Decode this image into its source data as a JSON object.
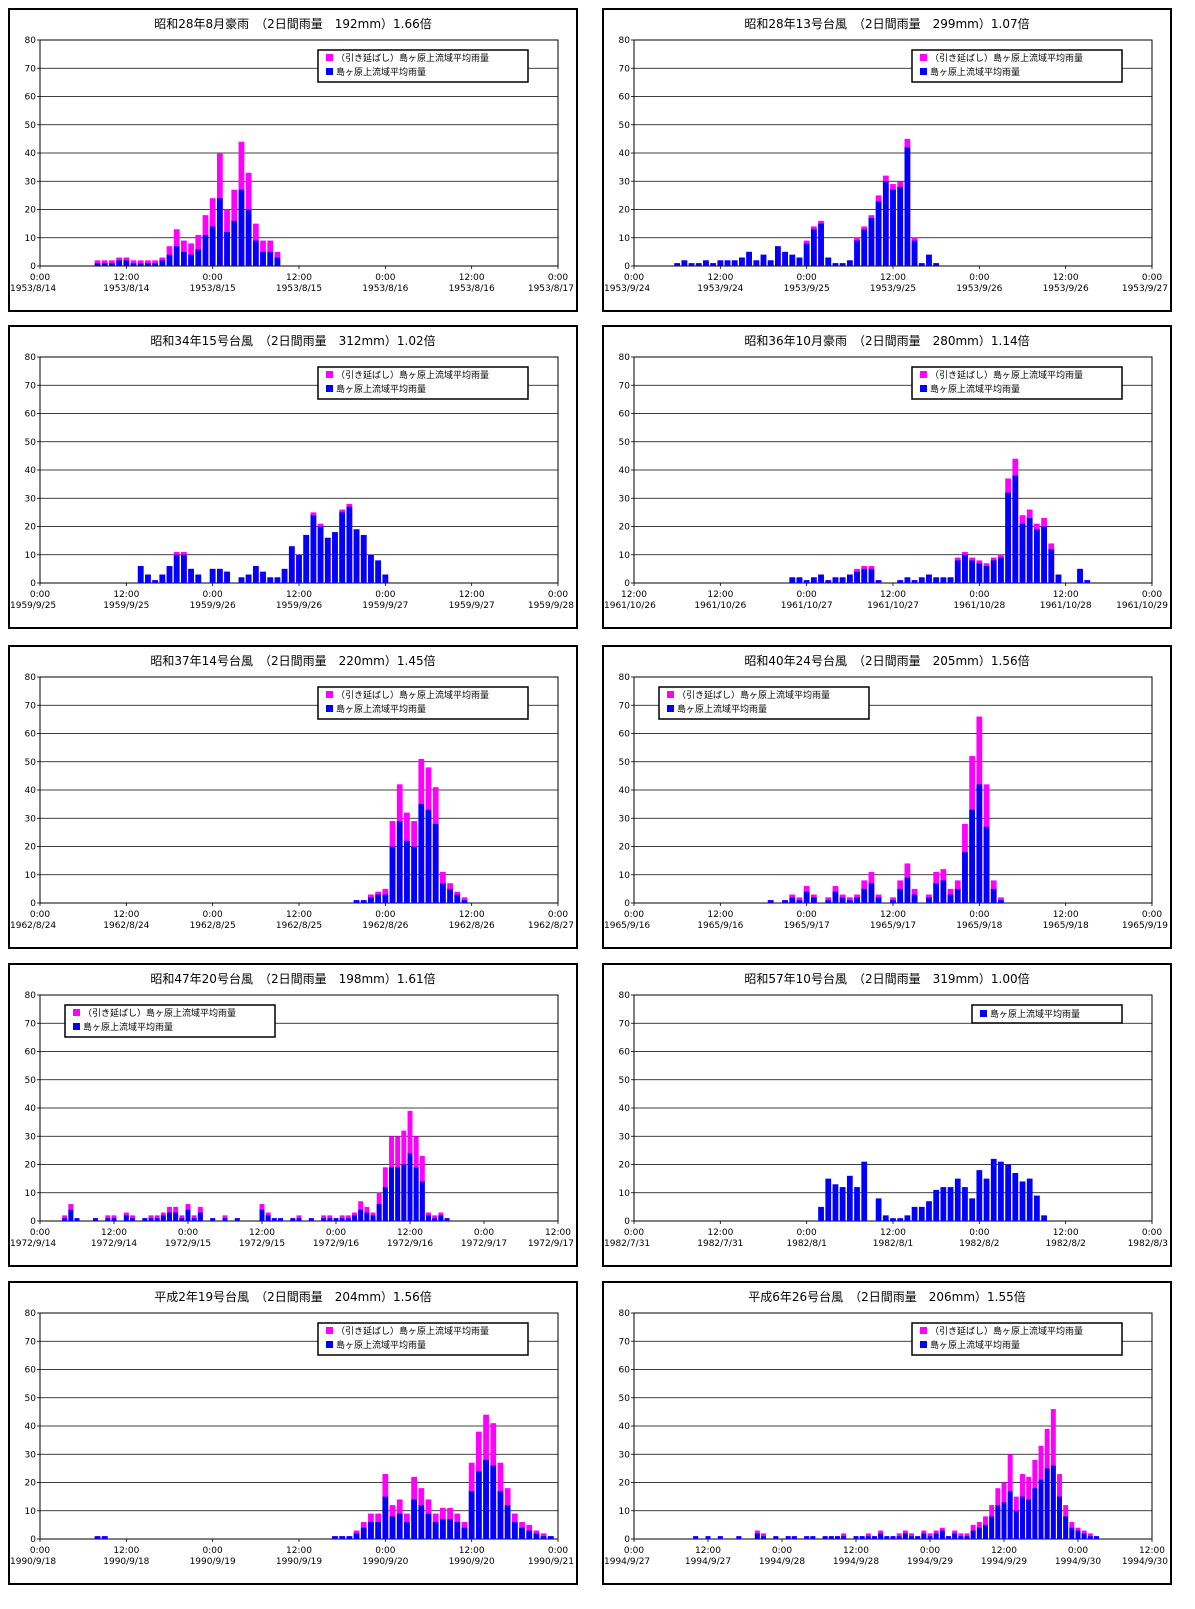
{
  "legend_labels": {
    "extended": "（引き延ばし）島ヶ原上流域平均雨量",
    "original": "島ヶ原上流域平均雨量"
  },
  "colors": {
    "extended": "#ff00ff",
    "original": "#0000ff"
  },
  "chart_data": [
    {
      "type": "bar",
      "title": "昭和28年8月豪雨　（2日間雨量　192mm）1.66倍",
      "ylim": [
        0,
        80
      ],
      "yticks": [
        0,
        10,
        20,
        30,
        40,
        50,
        60,
        70,
        80
      ],
      "xticks": [
        [
          "0:00",
          "1953/8/14"
        ],
        [
          "12:00",
          "1953/8/14"
        ],
        [
          "0:00",
          "1953/8/15"
        ],
        [
          "12:00",
          "1953/8/15"
        ],
        [
          "0:00",
          "1953/8/16"
        ],
        [
          "12:00",
          "1953/8/16"
        ],
        [
          "0:00",
          "1953/8/17"
        ]
      ],
      "legend": "both",
      "legend_position": "top-right",
      "start_hour": 8,
      "original": [
        1,
        1,
        1,
        2,
        2,
        1,
        1,
        1,
        1,
        2,
        4,
        7,
        5,
        4,
        6,
        11,
        14,
        24,
        12,
        16,
        27,
        20,
        9,
        5,
        5,
        3
      ],
      "extended": [
        2,
        2,
        2,
        3,
        3,
        2,
        2,
        2,
        2,
        3,
        7,
        13,
        9,
        8,
        11,
        18,
        24,
        40,
        20,
        27,
        44,
        33,
        15,
        9,
        9,
        5
      ]
    },
    {
      "type": "bar",
      "title": "昭和28年13号台風　（2日間雨量　299mm）1.07倍",
      "ylim": [
        0,
        80
      ],
      "yticks": [
        0,
        10,
        20,
        30,
        40,
        50,
        60,
        70,
        80
      ],
      "xticks": [
        [
          "0:00",
          "1953/9/24"
        ],
        [
          "12:00",
          "1953/9/24"
        ],
        [
          "0:00",
          "1953/9/25"
        ],
        [
          "12:00",
          "1953/9/25"
        ],
        [
          "0:00",
          "1953/9/26"
        ],
        [
          "12:00",
          "1953/9/26"
        ],
        [
          "0:00",
          "1953/9/27"
        ]
      ],
      "legend": "both",
      "legend_position": "top-right",
      "start_hour": 6,
      "original": [
        1,
        2,
        1,
        1,
        2,
        1,
        2,
        2,
        2,
        3,
        5,
        2,
        4,
        2,
        7,
        5,
        4,
        3,
        8,
        13,
        15,
        3,
        1,
        1,
        2,
        9,
        13,
        17,
        23,
        30,
        27,
        28,
        42,
        9,
        1,
        4,
        1
      ],
      "extended": [
        1,
        2,
        1,
        1,
        2,
        1,
        2,
        2,
        2,
        3,
        5,
        2,
        4,
        2,
        7,
        5,
        4,
        3,
        9,
        14,
        16,
        3,
        1,
        1,
        2,
        10,
        14,
        18,
        25,
        32,
        29,
        30,
        45,
        10,
        1,
        4,
        1
      ]
    },
    {
      "type": "bar",
      "title": "昭和34年15号台風　（2日間雨量　312mm）1.02倍",
      "ylim": [
        0,
        80
      ],
      "yticks": [
        0,
        10,
        20,
        30,
        40,
        50,
        60,
        70,
        80
      ],
      "xticks": [
        [
          "0:00",
          "1959/9/25"
        ],
        [
          "12:00",
          "1959/9/25"
        ],
        [
          "0:00",
          "1959/9/26"
        ],
        [
          "12:00",
          "1959/9/26"
        ],
        [
          "0:00",
          "1959/9/27"
        ],
        [
          "12:00",
          "1959/9/27"
        ],
        [
          "0:00",
          "1959/9/28"
        ]
      ],
      "legend": "both",
      "legend_position": "top-right",
      "start_hour": 14,
      "original": [
        6,
        3,
        1,
        3,
        6,
        10,
        10,
        5,
        3,
        0,
        5,
        5,
        4,
        0,
        2,
        3,
        6,
        4,
        2,
        2,
        5,
        13,
        10,
        17,
        24,
        20,
        16,
        18,
        25,
        27,
        19,
        17,
        10,
        8,
        3
      ],
      "extended": [
        6,
        3,
        1,
        3,
        6,
        11,
        11,
        5,
        3,
        0,
        5,
        5,
        4,
        0,
        2,
        3,
        6,
        4,
        2,
        2,
        5,
        13,
        10,
        17,
        25,
        21,
        16,
        18,
        26,
        28,
        19,
        17,
        10,
        8,
        3
      ]
    },
    {
      "type": "bar",
      "title": "昭和36年10月豪雨　（2日間雨量　280mm）1.14倍",
      "ylim": [
        0,
        80
      ],
      "yticks": [
        0,
        10,
        20,
        30,
        40,
        50,
        60,
        70,
        80
      ],
      "xticks": [
        [
          "12:00",
          "1961/10/26"
        ],
        [
          "12:00",
          "1961/10/26"
        ],
        [
          "0:00",
          "1961/10/27"
        ],
        [
          "12:00",
          "1961/10/27"
        ],
        [
          "0:00",
          "1961/10/28"
        ],
        [
          "12:00",
          "1961/10/28"
        ],
        [
          "0:00",
          "1961/10/29"
        ]
      ],
      "legend": "both",
      "legend_position": "top-right",
      "start_hour": 22,
      "original": [
        2,
        2,
        1,
        2,
        3,
        1,
        2,
        2,
        3,
        4,
        5,
        5,
        1,
        0,
        0,
        1,
        2,
        1,
        2,
        3,
        2,
        2,
        2,
        8,
        10,
        8,
        7,
        6,
        8,
        9,
        32,
        38,
        21,
        23,
        19,
        20,
        12,
        3,
        0,
        0,
        5,
        1
      ],
      "extended": [
        2,
        2,
        1,
        2,
        3,
        1,
        2,
        2,
        3,
        5,
        6,
        6,
        1,
        0,
        0,
        1,
        2,
        1,
        2,
        3,
        2,
        2,
        2,
        9,
        11,
        9,
        8,
        7,
        9,
        10,
        37,
        44,
        24,
        26,
        21,
        23,
        14,
        3,
        0,
        0,
        5,
        1
      ]
    },
    {
      "type": "bar",
      "title": "昭和37年14号台風　（2日間雨量　220mm）1.45倍",
      "ylim": [
        0,
        80
      ],
      "yticks": [
        0,
        10,
        20,
        30,
        40,
        50,
        60,
        70,
        80
      ],
      "xticks": [
        [
          "0:00",
          "1962/8/24"
        ],
        [
          "12:00",
          "1962/8/24"
        ],
        [
          "0:00",
          "1962/8/25"
        ],
        [
          "12:00",
          "1962/8/25"
        ],
        [
          "0:00",
          "1962/8/26"
        ],
        [
          "12:00",
          "1962/8/26"
        ],
        [
          "0:00",
          "1962/8/27"
        ]
      ],
      "legend": "both",
      "legend_position": "top-right",
      "start_hour": 44,
      "original": [
        1,
        1,
        2,
        3,
        3,
        20,
        29,
        22,
        20,
        35,
        33,
        28,
        7,
        5,
        3,
        1
      ],
      "extended": [
        1,
        1,
        3,
        4,
        5,
        29,
        42,
        32,
        29,
        51,
        48,
        41,
        11,
        7,
        4,
        2
      ]
    },
    {
      "type": "bar",
      "title": "昭和40年24号台風　（2日間雨量　205mm）1.56倍",
      "ylim": [
        0,
        80
      ],
      "yticks": [
        0,
        10,
        20,
        30,
        40,
        50,
        60,
        70,
        80
      ],
      "xticks": [
        [
          "0:00",
          "1965/9/16"
        ],
        [
          "12:00",
          "1965/9/16"
        ],
        [
          "0:00",
          "1965/9/17"
        ],
        [
          "12:00",
          "1965/9/17"
        ],
        [
          "0:00",
          "1965/9/18"
        ],
        [
          "12:00",
          "1965/9/18"
        ],
        [
          "0:00",
          "1965/9/19"
        ]
      ],
      "legend": "both",
      "legend_position": "top-left",
      "start_hour": 18,
      "original": [
        0,
        1,
        0,
        1,
        2,
        1,
        4,
        2,
        0,
        1,
        4,
        2,
        1,
        2,
        5,
        7,
        2,
        0,
        1,
        5,
        9,
        3,
        0,
        2,
        7,
        8,
        3,
        5,
        18,
        33,
        42,
        27,
        5,
        1
      ],
      "extended": [
        0,
        1,
        0,
        1,
        3,
        2,
        6,
        3,
        0,
        2,
        6,
        3,
        2,
        3,
        8,
        11,
        3,
        0,
        2,
        8,
        14,
        5,
        0,
        3,
        11,
        12,
        5,
        8,
        28,
        52,
        66,
        42,
        8,
        2
      ]
    },
    {
      "type": "bar",
      "title": "昭和47年20号台風　（2日間雨量　198mm）1.61倍",
      "ylim": [
        0,
        80
      ],
      "yticks": [
        0,
        10,
        20,
        30,
        40,
        50,
        60,
        70,
        80
      ],
      "xticks": [
        [
          "0:00",
          "1972/9/14"
        ],
        [
          "12:00",
          "1972/9/14"
        ],
        [
          "0:00",
          "1972/9/15"
        ],
        [
          "12:00",
          "1972/9/15"
        ],
        [
          "0:00",
          "1972/9/16"
        ],
        [
          "12:00",
          "1972/9/16"
        ],
        [
          "0:00",
          "1972/9/17"
        ],
        [
          "12:00",
          "1972/9/17"
        ]
      ],
      "legend": "both",
      "legend_position": "top-left",
      "start_hour": 4,
      "original": [
        1,
        4,
        1,
        0,
        0,
        1,
        0,
        1,
        1,
        0,
        2,
        1,
        0,
        1,
        1,
        1,
        2,
        3,
        3,
        1,
        4,
        1,
        3,
        0,
        1,
        0,
        1,
        0,
        1,
        0,
        0,
        0,
        4,
        2,
        1,
        1,
        0,
        1,
        1,
        0,
        1,
        0,
        1,
        1,
        1,
        1,
        1,
        2,
        4,
        3,
        2,
        6,
        12,
        19,
        19,
        20,
        24,
        19,
        14,
        2,
        1,
        2,
        1
      ],
      "extended": [
        2,
        6,
        1,
        0,
        0,
        1,
        0,
        2,
        2,
        0,
        3,
        2,
        0,
        1,
        2,
        2,
        3,
        5,
        5,
        2,
        6,
        2,
        5,
        0,
        1,
        0,
        2,
        0,
        1,
        0,
        0,
        0,
        6,
        3,
        1,
        1,
        0,
        1,
        2,
        0,
        1,
        0,
        2,
        2,
        1,
        2,
        2,
        3,
        7,
        5,
        3,
        10,
        19,
        30,
        30,
        32,
        39,
        30,
        23,
        3,
        2,
        3,
        1
      ]
    },
    {
      "type": "bar",
      "title": "昭和57年10号台風　（2日間雨量　319mm）1.00倍",
      "ylim": [
        0,
        80
      ],
      "yticks": [
        0,
        10,
        20,
        30,
        40,
        50,
        60,
        70,
        80
      ],
      "xticks": [
        [
          "0:00",
          "1982/7/31"
        ],
        [
          "12:00",
          "1982/7/31"
        ],
        [
          "0:00",
          "1982/8/1"
        ],
        [
          "12:00",
          "1982/8/1"
        ],
        [
          "0:00",
          "1982/8/2"
        ],
        [
          "12:00",
          "1982/8/2"
        ],
        [
          "0:00",
          "1982/8/3"
        ]
      ],
      "legend": "original",
      "legend_position": "top-right",
      "start_hour": 26,
      "original": [
        5,
        15,
        13,
        12,
        16,
        12,
        21,
        0,
        8,
        2,
        1,
        1,
        2,
        5,
        5,
        7,
        11,
        12,
        12,
        15,
        12,
        8,
        18,
        15,
        22,
        21,
        20,
        17,
        14,
        15,
        9,
        2
      ],
      "extended": []
    },
    {
      "type": "bar",
      "title": "平成2年19号台風　（2日間雨量　204mm）1.56倍",
      "ylim": [
        0,
        80
      ],
      "yticks": [
        0,
        10,
        20,
        30,
        40,
        50,
        60,
        70,
        80
      ],
      "xticks": [
        [
          "0:00",
          "1990/9/18"
        ],
        [
          "12:00",
          "1990/9/18"
        ],
        [
          "0:00",
          "1990/9/19"
        ],
        [
          "12:00",
          "1990/9/19"
        ],
        [
          "0:00",
          "1990/9/20"
        ],
        [
          "12:00",
          "1990/9/20"
        ],
        [
          "0:00",
          "1990/9/21"
        ]
      ],
      "legend": "both",
      "legend_position": "top-right",
      "start_hour": 8,
      "original": [
        1,
        1,
        0,
        0,
        0,
        0,
        0,
        0,
        0,
        0,
        0,
        0,
        0,
        0,
        0,
        0,
        0,
        0,
        0,
        0,
        0,
        0,
        0,
        0,
        0,
        0,
        0,
        0,
        0,
        0,
        0,
        0,
        0,
        1,
        1,
        1,
        2,
        4,
        6,
        6,
        15,
        8,
        9,
        6,
        14,
        12,
        9,
        6,
        7,
        7,
        6,
        4,
        17,
        24,
        28,
        26,
        17,
        12,
        6,
        4,
        3,
        2,
        1,
        1
      ],
      "extended": [
        1,
        1,
        0,
        0,
        0,
        0,
        0,
        0,
        0,
        0,
        0,
        0,
        0,
        0,
        0,
        0,
        0,
        0,
        0,
        0,
        0,
        0,
        0,
        0,
        0,
        0,
        0,
        0,
        0,
        0,
        0,
        0,
        0,
        1,
        1,
        1,
        3,
        6,
        9,
        9,
        23,
        12,
        14,
        9,
        22,
        18,
        14,
        9,
        11,
        11,
        9,
        6,
        27,
        38,
        44,
        41,
        27,
        18,
        9,
        6,
        5,
        3,
        2,
        1
      ]
    },
    {
      "type": "bar",
      "title": "平成6年26号台風　（2日間雨量　206mm）1.55倍",
      "ylim": [
        0,
        80
      ],
      "yticks": [
        0,
        10,
        20,
        30,
        40,
        50,
        60,
        70,
        80
      ],
      "xticks": [
        [
          "0:00",
          "1994/9/27"
        ],
        [
          "12:00",
          "1994/9/27"
        ],
        [
          "0:00",
          "1994/9/28"
        ],
        [
          "12:00",
          "1994/9/28"
        ],
        [
          "0:00",
          "1994/9/29"
        ],
        [
          "12:00",
          "1994/9/29"
        ],
        [
          "0:00",
          "1994/9/30"
        ],
        [
          "12:00",
          "1994/9/30"
        ]
      ],
      "legend": "both",
      "legend_position": "top-right",
      "start_hour": 10,
      "original": [
        1,
        0,
        1,
        0,
        1,
        0,
        0,
        1,
        0,
        0,
        2,
        1,
        0,
        1,
        0,
        1,
        1,
        0,
        1,
        1,
        0,
        1,
        1,
        1,
        1,
        0,
        1,
        1,
        1,
        1,
        2,
        1,
        1,
        1,
        2,
        1,
        1,
        2,
        1,
        2,
        3,
        1,
        2,
        1,
        1,
        3,
        4,
        5,
        8,
        12,
        13,
        17,
        10,
        15,
        14,
        18,
        21,
        25,
        26,
        15,
        8,
        4,
        3,
        2,
        1,
        1
      ],
      "extended": [
        1,
        0,
        1,
        0,
        1,
        0,
        0,
        1,
        0,
        0,
        3,
        2,
        0,
        1,
        0,
        1,
        1,
        0,
        1,
        1,
        0,
        1,
        1,
        1,
        2,
        0,
        1,
        1,
        2,
        1,
        3,
        1,
        1,
        2,
        3,
        2,
        1,
        3,
        2,
        3,
        4,
        1,
        3,
        2,
        2,
        5,
        6,
        8,
        12,
        18,
        20,
        30,
        15,
        23,
        22,
        28,
        33,
        39,
        46,
        23,
        12,
        6,
        4,
        3,
        2,
        1
      ]
    }
  ]
}
